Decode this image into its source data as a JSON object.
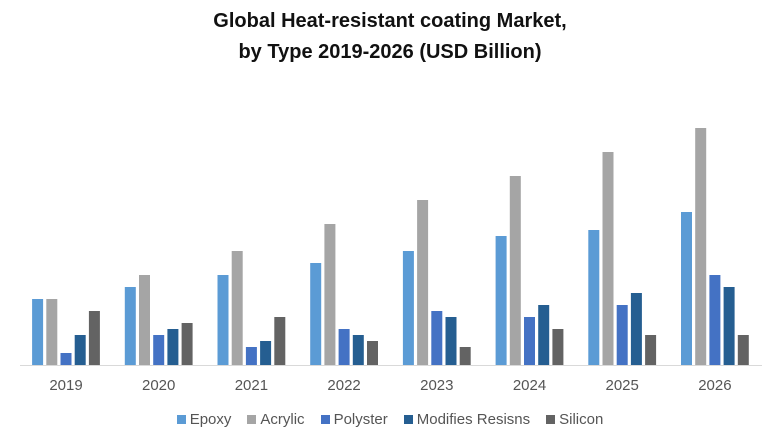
{
  "chart_data": {
    "type": "bar",
    "title": "Global Heat-resistant coating Market,",
    "subtitle": "by Type 2019-2026 (USD Billion)",
    "xlabel": "",
    "ylabel": "",
    "categories": [
      "2019",
      "2020",
      "2021",
      "2022",
      "2023",
      "2024",
      "2025",
      "2026"
    ],
    "series": [
      {
        "name": "Epoxy",
        "color": "#5b9bd5",
        "values": [
          11,
          13,
          15,
          17,
          19,
          21.5,
          22.5,
          25.5
        ]
      },
      {
        "name": "Acrylic",
        "color": "#a5a5a5",
        "values": [
          11,
          15,
          19,
          23.5,
          27.5,
          31.5,
          35.5,
          39.5
        ]
      },
      {
        "name": "Polyster",
        "color": "#4472c4",
        "values": [
          2,
          5,
          3,
          6,
          9,
          8,
          10,
          15
        ]
      },
      {
        "name": "Modifies Resisns",
        "color": "#255e91",
        "values": [
          5,
          6,
          4,
          5,
          8,
          10,
          12,
          13
        ]
      },
      {
        "name": "Silicon",
        "color": "#636363",
        "values": [
          9,
          7,
          8,
          4,
          3,
          6,
          5,
          5
        ]
      }
    ],
    "ylim": [
      0,
      40
    ],
    "grid": false,
    "y_axis_shown": false,
    "legend": "bottom"
  }
}
